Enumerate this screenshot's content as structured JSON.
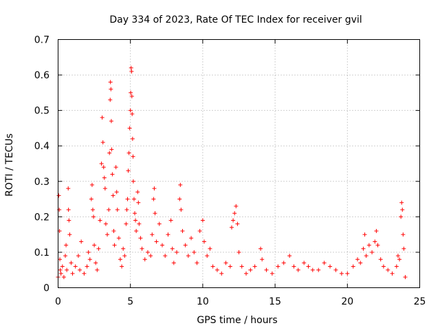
{
  "chart_data": {
    "type": "scatter",
    "title": "Day 334 of 2023, Rate Of TEC Index for receiver gvil",
    "xlabel": "GPS time / hours",
    "ylabel": "ROTI / TECUs",
    "xlim": [
      0,
      25
    ],
    "ylim": [
      0,
      0.7
    ],
    "xticks": [
      0,
      5,
      10,
      15,
      20,
      25
    ],
    "yticks": [
      0,
      0.1,
      0.2,
      0.3,
      0.4,
      0.5,
      0.6,
      0.7
    ],
    "xtick_labels": [
      "0",
      "5",
      "10",
      "15",
      "20",
      "25"
    ],
    "ytick_labels": [
      "0",
      "0.1",
      "0.2",
      "0.3",
      "0.4",
      "0.5",
      "0.6",
      "0.7"
    ],
    "grid": true,
    "marker": "+",
    "color": "#ff0000",
    "series": [
      {
        "name": "ROTI",
        "points": [
          [
            0.0,
            0.03
          ],
          [
            0.05,
            0.26
          ],
          [
            0.08,
            0.22
          ],
          [
            0.1,
            0.16
          ],
          [
            0.12,
            0.08
          ],
          [
            0.15,
            0.05
          ],
          [
            0.2,
            0.04
          ],
          [
            0.3,
            0.06
          ],
          [
            0.4,
            0.03
          ],
          [
            0.5,
            0.09
          ],
          [
            0.55,
            0.12
          ],
          [
            0.6,
            0.05
          ],
          [
            0.7,
            0.28
          ],
          [
            0.72,
            0.22
          ],
          [
            0.75,
            0.19
          ],
          [
            0.8,
            0.15
          ],
          [
            0.9,
            0.07
          ],
          [
            1.0,
            0.04
          ],
          [
            1.2,
            0.06
          ],
          [
            1.4,
            0.09
          ],
          [
            1.5,
            0.05
          ],
          [
            1.6,
            0.13
          ],
          [
            1.8,
            0.04
          ],
          [
            2.0,
            0.06
          ],
          [
            2.1,
            0.1
          ],
          [
            2.2,
            0.08
          ],
          [
            2.3,
            0.25
          ],
          [
            2.35,
            0.29
          ],
          [
            2.4,
            0.22
          ],
          [
            2.45,
            0.2
          ],
          [
            2.5,
            0.12
          ],
          [
            2.6,
            0.07
          ],
          [
            2.7,
            0.05
          ],
          [
            2.8,
            0.11
          ],
          [
            2.9,
            0.19
          ],
          [
            3.0,
            0.35
          ],
          [
            3.05,
            0.48
          ],
          [
            3.1,
            0.41
          ],
          [
            3.15,
            0.34
          ],
          [
            3.2,
            0.31
          ],
          [
            3.25,
            0.28
          ],
          [
            3.3,
            0.18
          ],
          [
            3.4,
            0.15
          ],
          [
            3.5,
            0.22
          ],
          [
            3.55,
            0.38
          ],
          [
            3.6,
            0.53
          ],
          [
            3.62,
            0.58
          ],
          [
            3.65,
            0.56
          ],
          [
            3.68,
            0.47
          ],
          [
            3.7,
            0.39
          ],
          [
            3.75,
            0.32
          ],
          [
            3.8,
            0.26
          ],
          [
            3.85,
            0.16
          ],
          [
            3.9,
            0.12
          ],
          [
            4.0,
            0.34
          ],
          [
            4.05,
            0.27
          ],
          [
            4.1,
            0.22
          ],
          [
            4.2,
            0.14
          ],
          [
            4.3,
            0.08
          ],
          [
            4.4,
            0.06
          ],
          [
            4.5,
            0.11
          ],
          [
            4.6,
            0.09
          ],
          [
            4.7,
            0.18
          ],
          [
            4.75,
            0.22
          ],
          [
            4.8,
            0.25
          ],
          [
            4.85,
            0.33
          ],
          [
            4.9,
            0.38
          ],
          [
            4.95,
            0.45
          ],
          [
            5.0,
            0.5
          ],
          [
            5.02,
            0.55
          ],
          [
            5.05,
            0.62
          ],
          [
            5.08,
            0.61
          ],
          [
            5.1,
            0.54
          ],
          [
            5.12,
            0.49
          ],
          [
            5.15,
            0.42
          ],
          [
            5.18,
            0.37
          ],
          [
            5.2,
            0.3
          ],
          [
            5.25,
            0.25
          ],
          [
            5.3,
            0.21
          ],
          [
            5.35,
            0.19
          ],
          [
            5.4,
            0.16
          ],
          [
            5.5,
            0.27
          ],
          [
            5.55,
            0.24
          ],
          [
            5.6,
            0.18
          ],
          [
            5.7,
            0.14
          ],
          [
            5.8,
            0.11
          ],
          [
            6.0,
            0.08
          ],
          [
            6.2,
            0.1
          ],
          [
            6.4,
            0.09
          ],
          [
            6.5,
            0.15
          ],
          [
            6.6,
            0.25
          ],
          [
            6.65,
            0.28
          ],
          [
            6.7,
            0.21
          ],
          [
            6.8,
            0.13
          ],
          [
            7.0,
            0.18
          ],
          [
            7.2,
            0.12
          ],
          [
            7.4,
            0.09
          ],
          [
            7.6,
            0.15
          ],
          [
            7.8,
            0.19
          ],
          [
            7.9,
            0.11
          ],
          [
            8.0,
            0.07
          ],
          [
            8.2,
            0.1
          ],
          [
            8.4,
            0.25
          ],
          [
            8.45,
            0.29
          ],
          [
            8.5,
            0.22
          ],
          [
            8.6,
            0.16
          ],
          [
            8.8,
            0.12
          ],
          [
            9.0,
            0.09
          ],
          [
            9.2,
            0.14
          ],
          [
            9.4,
            0.1
          ],
          [
            9.6,
            0.07
          ],
          [
            9.8,
            0.16
          ],
          [
            10.0,
            0.19
          ],
          [
            10.1,
            0.13
          ],
          [
            10.3,
            0.09
          ],
          [
            10.5,
            0.11
          ],
          [
            10.7,
            0.06
          ],
          [
            11.0,
            0.05
          ],
          [
            11.3,
            0.04
          ],
          [
            11.6,
            0.07
          ],
          [
            11.9,
            0.06
          ],
          [
            12.0,
            0.17
          ],
          [
            12.1,
            0.19
          ],
          [
            12.2,
            0.21
          ],
          [
            12.3,
            0.23
          ],
          [
            12.4,
            0.18
          ],
          [
            12.5,
            0.1
          ],
          [
            12.7,
            0.06
          ],
          [
            13.0,
            0.04
          ],
          [
            13.3,
            0.05
          ],
          [
            13.6,
            0.06
          ],
          [
            14.0,
            0.11
          ],
          [
            14.1,
            0.08
          ],
          [
            14.4,
            0.05
          ],
          [
            14.8,
            0.04
          ],
          [
            15.2,
            0.06
          ],
          [
            15.6,
            0.07
          ],
          [
            16.0,
            0.09
          ],
          [
            16.3,
            0.06
          ],
          [
            16.6,
            0.05
          ],
          [
            17.0,
            0.07
          ],
          [
            17.3,
            0.06
          ],
          [
            17.6,
            0.05
          ],
          [
            18.0,
            0.05
          ],
          [
            18.4,
            0.07
          ],
          [
            18.8,
            0.06
          ],
          [
            19.2,
            0.05
          ],
          [
            19.6,
            0.04
          ],
          [
            20.0,
            0.04
          ],
          [
            20.4,
            0.06
          ],
          [
            20.7,
            0.08
          ],
          [
            20.9,
            0.07
          ],
          [
            21.1,
            0.11
          ],
          [
            21.2,
            0.15
          ],
          [
            21.3,
            0.09
          ],
          [
            21.5,
            0.12
          ],
          [
            21.7,
            0.1
          ],
          [
            21.9,
            0.13
          ],
          [
            22.0,
            0.16
          ],
          [
            22.1,
            0.12
          ],
          [
            22.3,
            0.08
          ],
          [
            22.5,
            0.06
          ],
          [
            22.8,
            0.05
          ],
          [
            23.1,
            0.04
          ],
          [
            23.4,
            0.06
          ],
          [
            23.5,
            0.09
          ],
          [
            23.6,
            0.08
          ],
          [
            23.7,
            0.2
          ],
          [
            23.75,
            0.24
          ],
          [
            23.8,
            0.22
          ],
          [
            23.85,
            0.15
          ],
          [
            23.9,
            0.11
          ],
          [
            24.0,
            0.03
          ]
        ]
      }
    ]
  }
}
